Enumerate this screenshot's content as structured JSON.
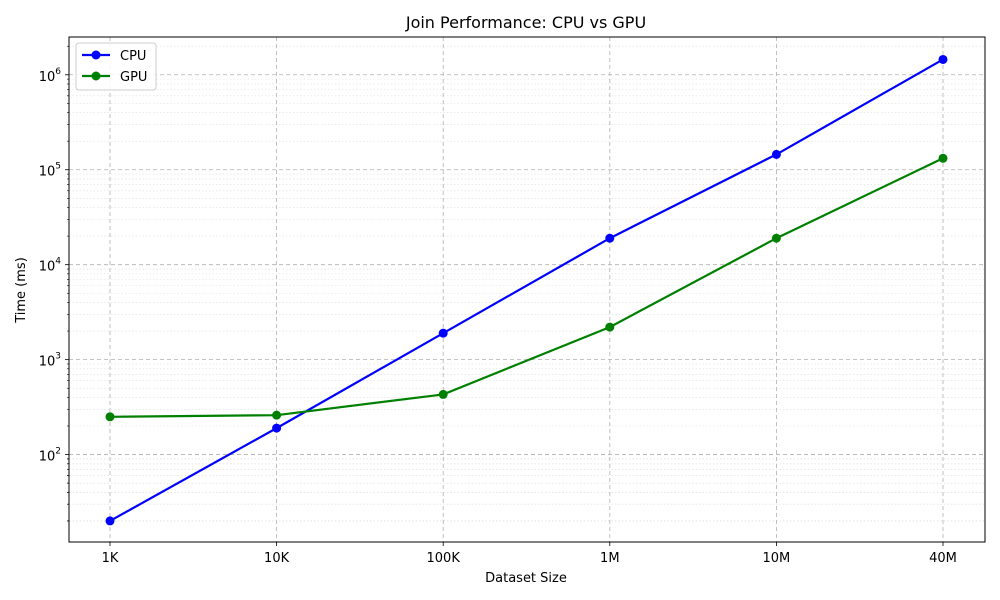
{
  "chart_data": {
    "type": "line",
    "title": "Join Performance: CPU vs GPU",
    "xlabel": "Dataset Size",
    "ylabel": "Time (ms)",
    "yscale": "log",
    "ylim": [
      12,
      2500000
    ],
    "categories": [
      "1K",
      "10K",
      "100K",
      "1M",
      "10M",
      "40M"
    ],
    "yticks": [
      {
        "value": 100,
        "base": "10",
        "exp": "2"
      },
      {
        "value": 1000,
        "base": "10",
        "exp": "3"
      },
      {
        "value": 10000,
        "base": "10",
        "exp": "4"
      },
      {
        "value": 100000,
        "base": "10",
        "exp": "5"
      },
      {
        "value": 1000000,
        "base": "10",
        "exp": "6"
      }
    ],
    "grid": true,
    "legend_position": "top-left",
    "series": [
      {
        "name": "CPU",
        "color": "#0000ff",
        "values": [
          20,
          190,
          1900,
          19000,
          145000,
          1450000
        ]
      },
      {
        "name": "GPU",
        "color": "#008000",
        "values": [
          250,
          260,
          430,
          2200,
          19000,
          132000
        ]
      }
    ]
  }
}
